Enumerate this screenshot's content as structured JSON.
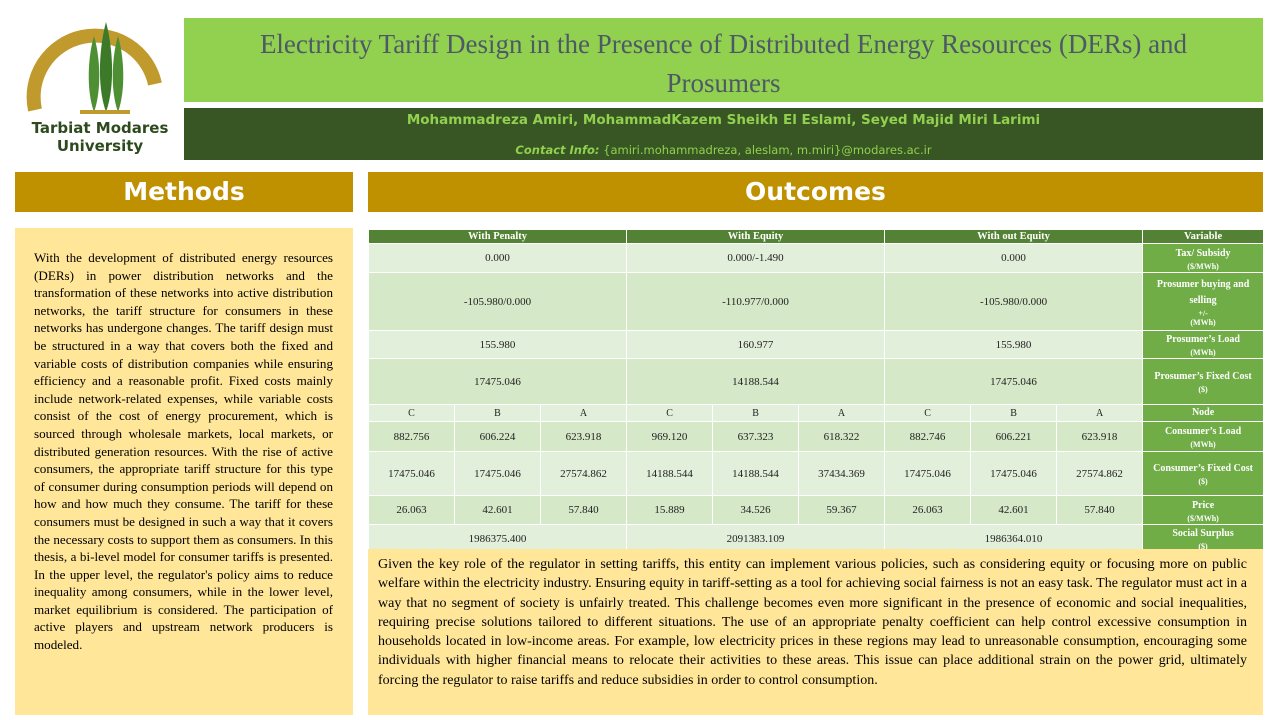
{
  "logo": {
    "line1": "Tarbiat Modares",
    "line2": "University"
  },
  "header": {
    "title": "Electricity Tariff Design in the Presence of Distributed Energy Resources (DERs) and Prosumers",
    "authors": "Mohammadreza Amiri, MohammadKazem Sheikh El Eslami, Seyed Majid Miri Larimi",
    "contact_label": "Contact Info:",
    "contact": "{amiri.mohammadreza, aleslam, m.miri}@modares.ac.ir"
  },
  "methods": {
    "heading": "Methods",
    "body": "With the development of distributed energy resources (DERs) in power distribution networks and the transformation of these networks into active distribution networks, the tariff structure for consumers in these networks has undergone changes. The tariff design must be structured in a way that covers both the fixed and variable costs of distribution companies while ensuring efficiency and a reasonable profit. Fixed costs mainly include network-related expenses, while variable costs consist of the cost of energy procurement, which is sourced through wholesale markets, local markets, or distributed generation resources. With the rise of active consumers, the appropriate tariff structure for this type of consumer during consumption periods will depend on how and how much they consume. The tariff for these consumers must be designed in such a way that it covers the necessary costs to support them as consumers. In this thesis, a bi-level model for consumer tariffs is presented. In the upper level, the regulator's policy aims to reduce inequality among consumers, while in the lower level, market equilibrium is considered. The participation of active players and upstream network producers is modeled."
  },
  "outcomes": {
    "heading": "Outcomes",
    "table": {
      "groups": [
        "With Penalty",
        "With Equity",
        "With out Equity"
      ],
      "variable_header": "Variable",
      "rows": [
        {
          "variable": "Tax/ Subsidy",
          "units": [
            "($/MWh)"
          ],
          "cells": [
            "0.000",
            "0.000/-1.490",
            "0.000"
          ]
        },
        {
          "variable": "Prosumer buying and selling",
          "units": [
            "+/-",
            "(MWh)"
          ],
          "cells": [
            "-105.980/0.000",
            "-110.977/0.000",
            "-105.980/0.000"
          ]
        },
        {
          "variable": "Prosumer’s Load",
          "units": [
            "(MWh)"
          ],
          "cells": [
            "155.980",
            "160.977",
            "155.980"
          ]
        },
        {
          "variable": "Prosumer’s Fixed Cost",
          "units": [
            "($)"
          ],
          "cells": [
            "17475.046",
            "14188.544",
            "17475.046"
          ]
        },
        {
          "variable": "Node",
          "units": [],
          "cells": [
            "C",
            "B",
            "A",
            "C",
            "B",
            "A",
            "C",
            "B",
            "A"
          ]
        },
        {
          "variable": "Consumer’s Load",
          "units": [
            "(MWh)"
          ],
          "cells": [
            "882.756",
            "606.224",
            "623.918",
            "969.120",
            "637.323",
            "618.322",
            "882.746",
            "606.221",
            "623.918"
          ]
        },
        {
          "variable": "Consumer’s Fixed Cost",
          "units": [
            "($)"
          ],
          "cells": [
            "17475.046",
            "17475.046",
            "27574.862",
            "14188.544",
            "14188.544",
            "37434.369",
            "17475.046",
            "17475.046",
            "27574.862"
          ]
        },
        {
          "variable": "Price",
          "units": [
            "($/MWh)"
          ],
          "cells": [
            "26.063",
            "42.601",
            "57.840",
            "15.889",
            "34.526",
            "59.367",
            "26.063",
            "42.601",
            "57.840"
          ]
        },
        {
          "variable": "Social Surplus",
          "units": [
            "($)"
          ],
          "cells": [
            "1986375.400",
            "2091383.109",
            "1986364.010"
          ]
        }
      ]
    },
    "summary": "Given the key role of the regulator in setting tariffs, this entity can implement various policies, such as considering equity or focusing more on public welfare within the electricity industry. Ensuring equity in tariff-setting as a tool for achieving social fairness is not an easy task. The regulator must act in a way that no segment of society is unfairly treated. This challenge becomes even more significant in the presence of economic and social inequalities, requiring precise solutions tailored to different situations. The use of an appropriate penalty coefficient can help control excessive consumption in households located in low-income areas. For example, low electricity prices in these regions may lead to unreasonable consumption, encouraging some individuals with higher financial means to relocate their activities to these areas. This issue can place additional strain on the power grid, ultimately forcing the regulator to raise tariffs and reduce subsidies in order to control consumption."
  }
}
